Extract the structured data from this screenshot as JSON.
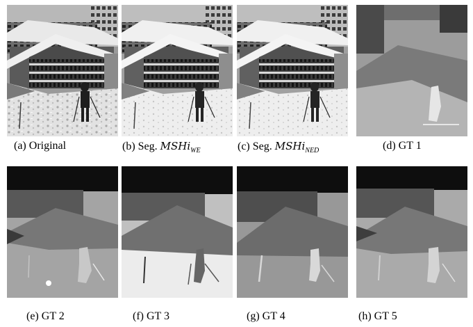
{
  "figure": {
    "panels": [
      {
        "id": "a",
        "kind": "photo",
        "caption": "(a) Original"
      },
      {
        "id": "b",
        "kind": "photo",
        "caption_prefix": "(b) Seg. ",
        "caption_math": "MSHi",
        "caption_sub": "WE"
      },
      {
        "id": "c",
        "kind": "photo",
        "caption_prefix": "(c) Seg. ",
        "caption_math": "MSHi",
        "caption_sub": "NED"
      },
      {
        "id": "d",
        "kind": "segmentation",
        "caption": "(d) GT 1"
      },
      {
        "id": "e",
        "kind": "segmentation",
        "caption": "(e) GT 2"
      },
      {
        "id": "f",
        "kind": "segmentation",
        "caption": "(f) GT 3"
      },
      {
        "id": "g",
        "kind": "segmentation",
        "caption": "(g) GT 4"
      },
      {
        "id": "h",
        "kind": "segmentation",
        "caption": "(h) GT 5"
      }
    ]
  }
}
